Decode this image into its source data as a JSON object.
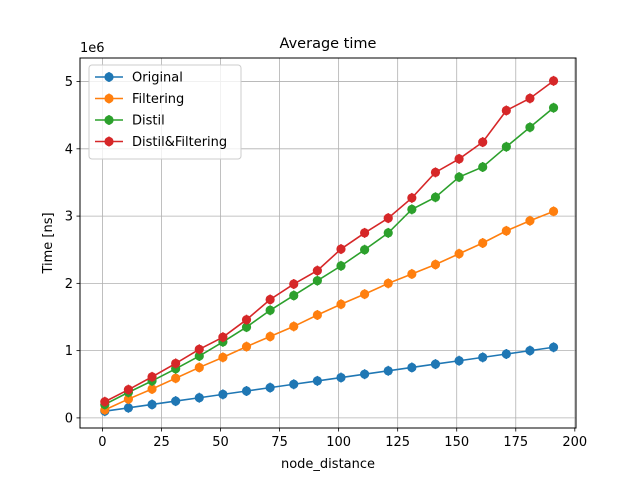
{
  "chart_data": {
    "type": "line",
    "title": "Average time",
    "xlabel": "node_distance",
    "ylabel": "Time [ns]",
    "y_offset_label": "1e6",
    "xlim": [
      -9.5,
      200.5
    ],
    "ylim": [
      -0.15,
      5.35
    ],
    "xticks": [
      0,
      25,
      50,
      75,
      100,
      125,
      150,
      175,
      200
    ],
    "yticks": [
      0,
      1,
      2,
      3,
      4,
      5
    ],
    "grid": true,
    "legend_position": "top-left",
    "x": [
      1,
      11,
      21,
      31,
      41,
      51,
      61,
      71,
      81,
      91,
      101,
      111,
      121,
      131,
      141,
      151,
      161,
      171,
      181,
      191
    ],
    "series": [
      {
        "name": "Original",
        "color": "#1f77b4",
        "values": [
          0.1,
          0.15,
          0.2,
          0.25,
          0.3,
          0.35,
          0.4,
          0.45,
          0.5,
          0.55,
          0.6,
          0.65,
          0.7,
          0.75,
          0.8,
          0.85,
          0.9,
          0.95,
          1.0,
          1.05
        ]
      },
      {
        "name": "Filtering",
        "color": "#ff7f0e",
        "values": [
          0.12,
          0.28,
          0.43,
          0.59,
          0.75,
          0.9,
          1.06,
          1.21,
          1.36,
          1.53,
          1.69,
          1.84,
          2.0,
          2.14,
          2.28,
          2.44,
          2.6,
          2.78,
          2.93,
          3.07
        ]
      },
      {
        "name": "Distil",
        "color": "#2ca02c",
        "values": [
          0.2,
          0.38,
          0.55,
          0.73,
          0.92,
          1.13,
          1.35,
          1.6,
          1.82,
          2.04,
          2.26,
          2.5,
          2.75,
          3.1,
          3.28,
          3.58,
          3.73,
          4.03,
          4.32,
          4.61
        ]
      },
      {
        "name": "Distil&Filtering",
        "color": "#d62728",
        "values": [
          0.24,
          0.42,
          0.61,
          0.81,
          1.02,
          1.2,
          1.46,
          1.76,
          1.99,
          2.19,
          2.51,
          2.75,
          2.97,
          3.27,
          3.65,
          3.85,
          4.1,
          4.57,
          4.75,
          5.01
        ]
      }
    ]
  }
}
